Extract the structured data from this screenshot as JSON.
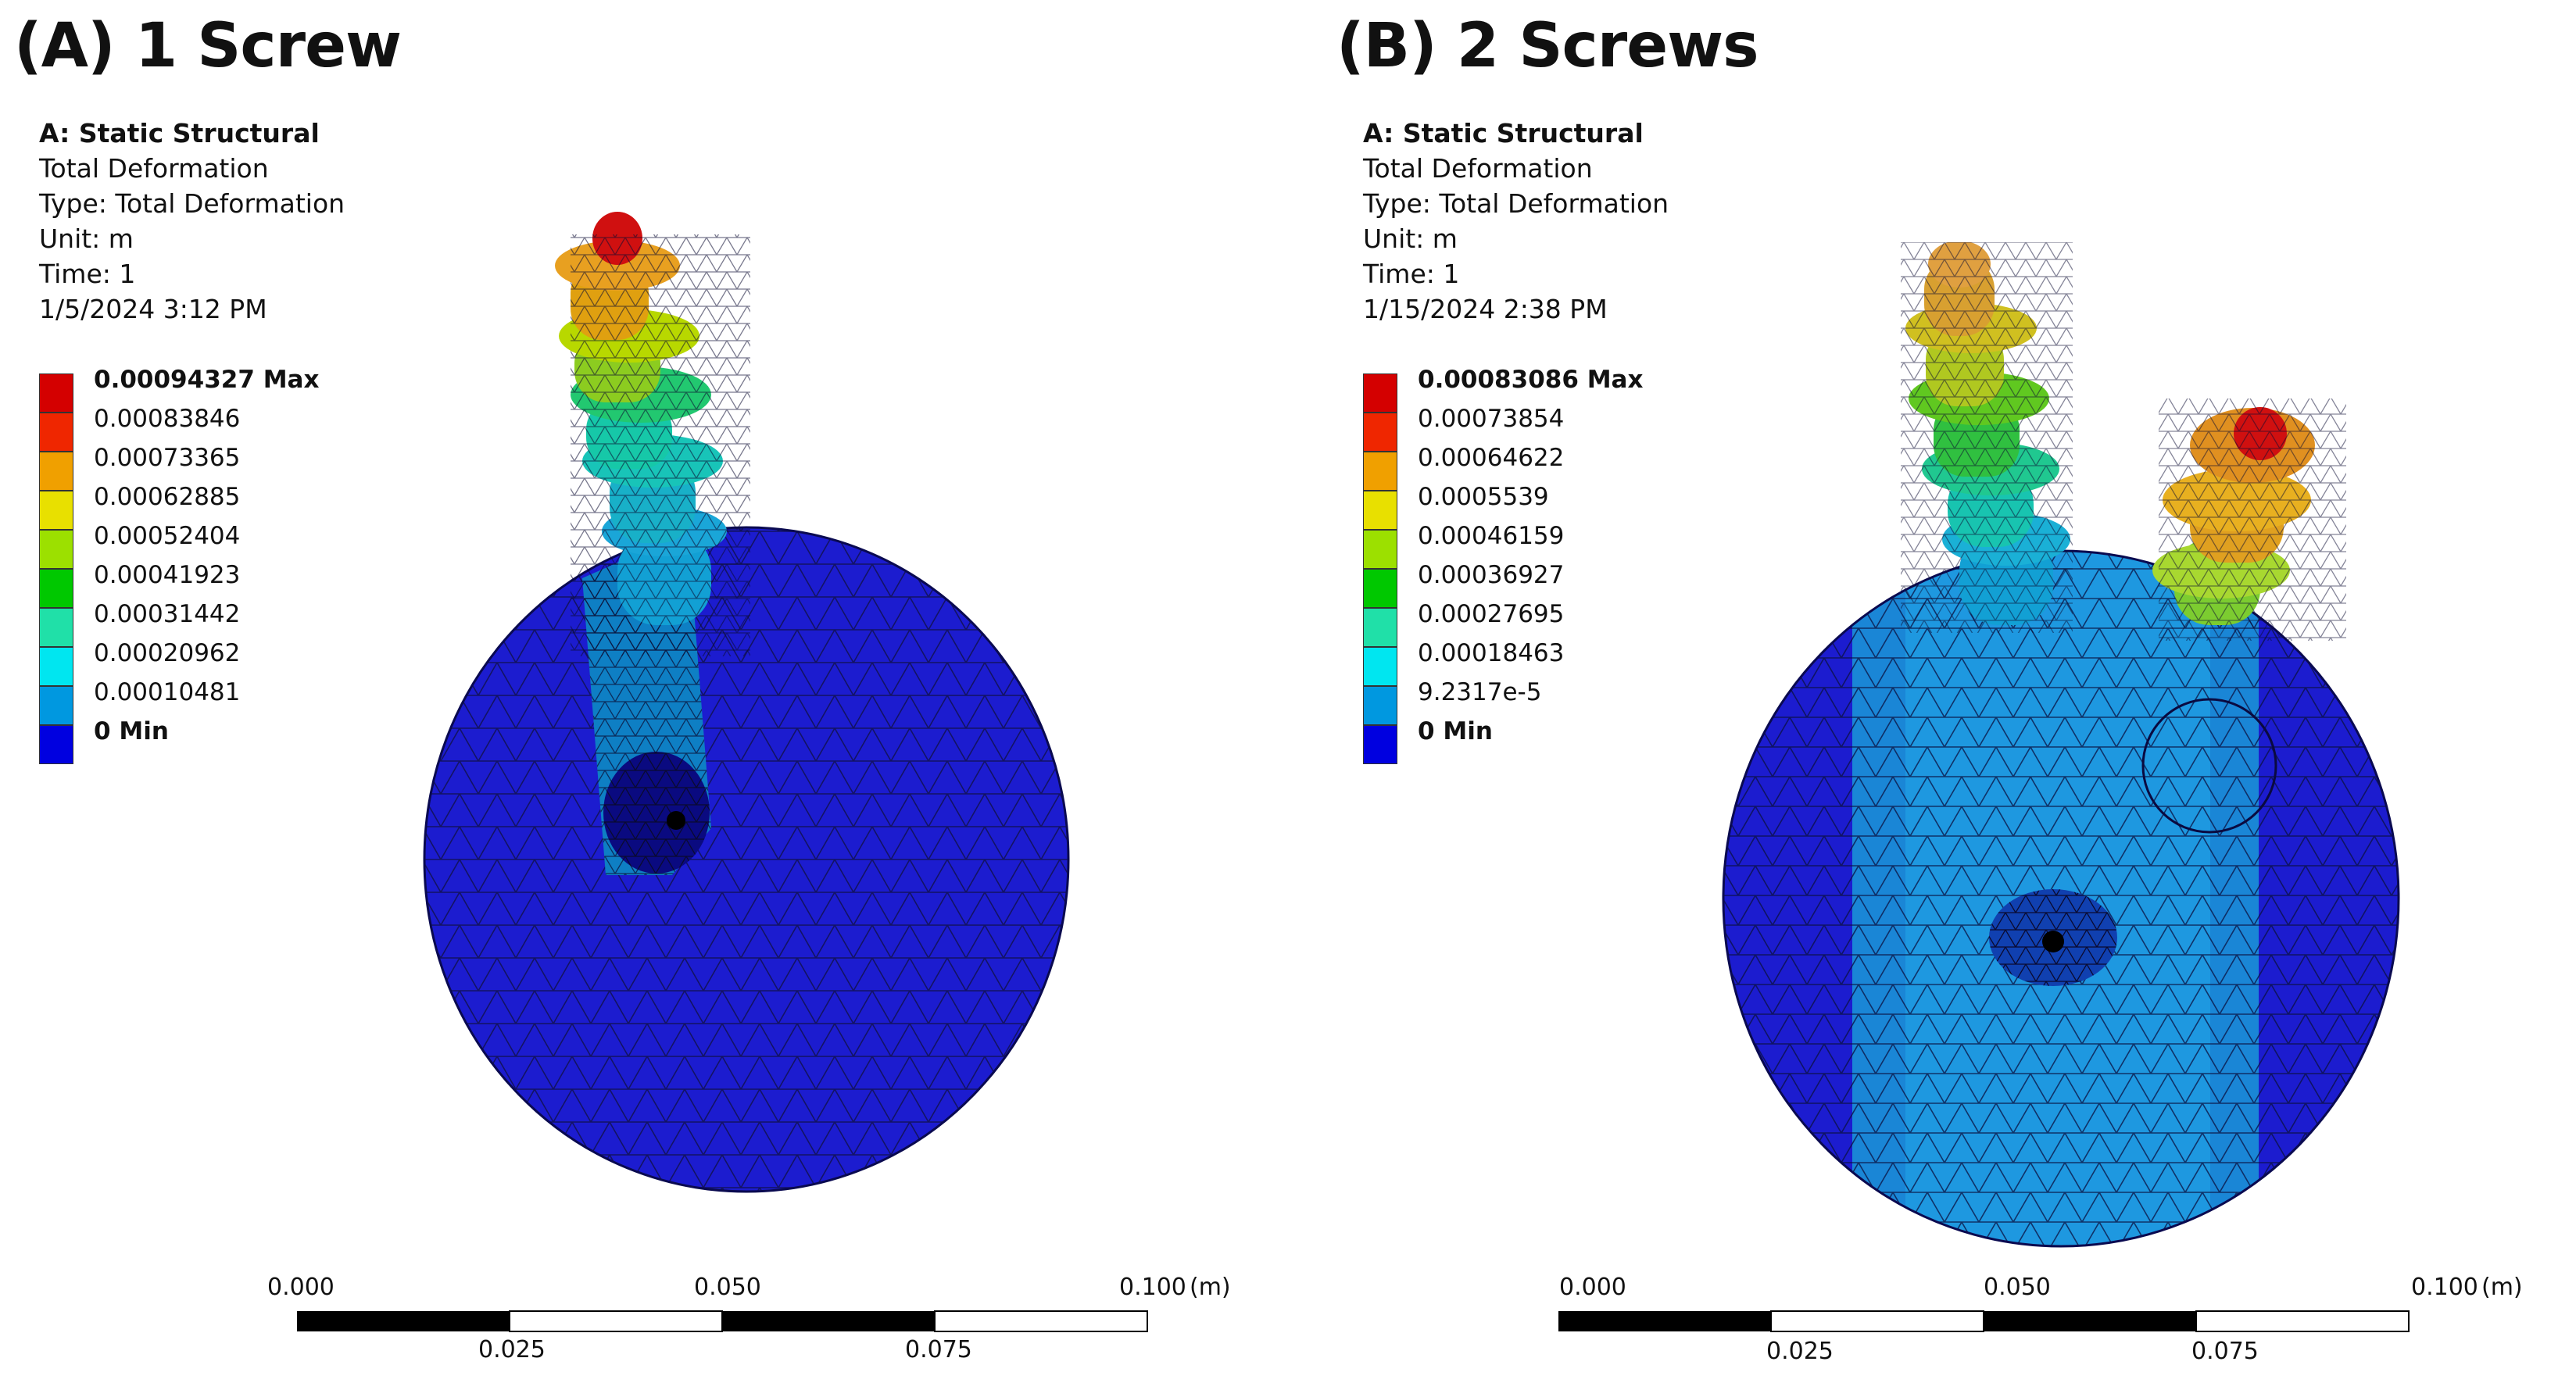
{
  "panel_a": {
    "title": "(A) 1 Screw",
    "info": {
      "analysis": "A: Static Structural",
      "result": "Total Deformation",
      "type": "Type: Total Deformation",
      "unit": "Unit: m",
      "time": "Time: 1",
      "date": "1/5/2024 3:12 PM"
    },
    "legend": [
      {
        "label": "0.00094327 Max",
        "color": "#d40000"
      },
      {
        "label": "0.00083846",
        "color": "#ef2600"
      },
      {
        "label": "0.00073365",
        "color": "#f0a000"
      },
      {
        "label": "0.00062885",
        "color": "#e8e000"
      },
      {
        "label": "0.00052404",
        "color": "#9ce000"
      },
      {
        "label": "0.00041923",
        "color": "#00c800"
      },
      {
        "label": "0.00031442",
        "color": "#20e0a8"
      },
      {
        "label": "0.00020962",
        "color": "#00e6f0"
      },
      {
        "label": "0.00010481",
        "color": "#0098e0"
      },
      {
        "label": "0 Min",
        "color": "#0000e0"
      }
    ],
    "scale": {
      "top_labels": [
        "0.000",
        "0.050",
        "0.100"
      ],
      "unit": "(m)",
      "bottom_labels": [
        "0.025",
        "0.075"
      ]
    }
  },
  "panel_b": {
    "title": "(B) 2 Screws",
    "info": {
      "analysis": "A: Static Structural",
      "result": "Total Deformation",
      "type": "Type: Total Deformation",
      "unit": "Unit: m",
      "time": "Time: 1",
      "date": "1/15/2024 2:38 PM"
    },
    "legend": [
      {
        "label": "0.00083086 Max",
        "color": "#d40000"
      },
      {
        "label": "0.00073854",
        "color": "#ef2600"
      },
      {
        "label": "0.00064622",
        "color": "#f0a000"
      },
      {
        "label": "0.0005539",
        "color": "#e8e000"
      },
      {
        "label": "0.00046159",
        "color": "#9ce000"
      },
      {
        "label": "0.00036927",
        "color": "#00c800"
      },
      {
        "label": "0.00027695",
        "color": "#20e0a8"
      },
      {
        "label": "0.00018463",
        "color": "#00e6f0"
      },
      {
        "label": "9.2317e-5",
        "color": "#0098e0"
      },
      {
        "label": "0 Min",
        "color": "#0000e0"
      }
    ],
    "scale": {
      "top_labels": [
        "0.000",
        "0.050",
        "0.100"
      ],
      "unit": "(m)",
      "bottom_labels": [
        "0.025",
        "0.075"
      ]
    }
  }
}
